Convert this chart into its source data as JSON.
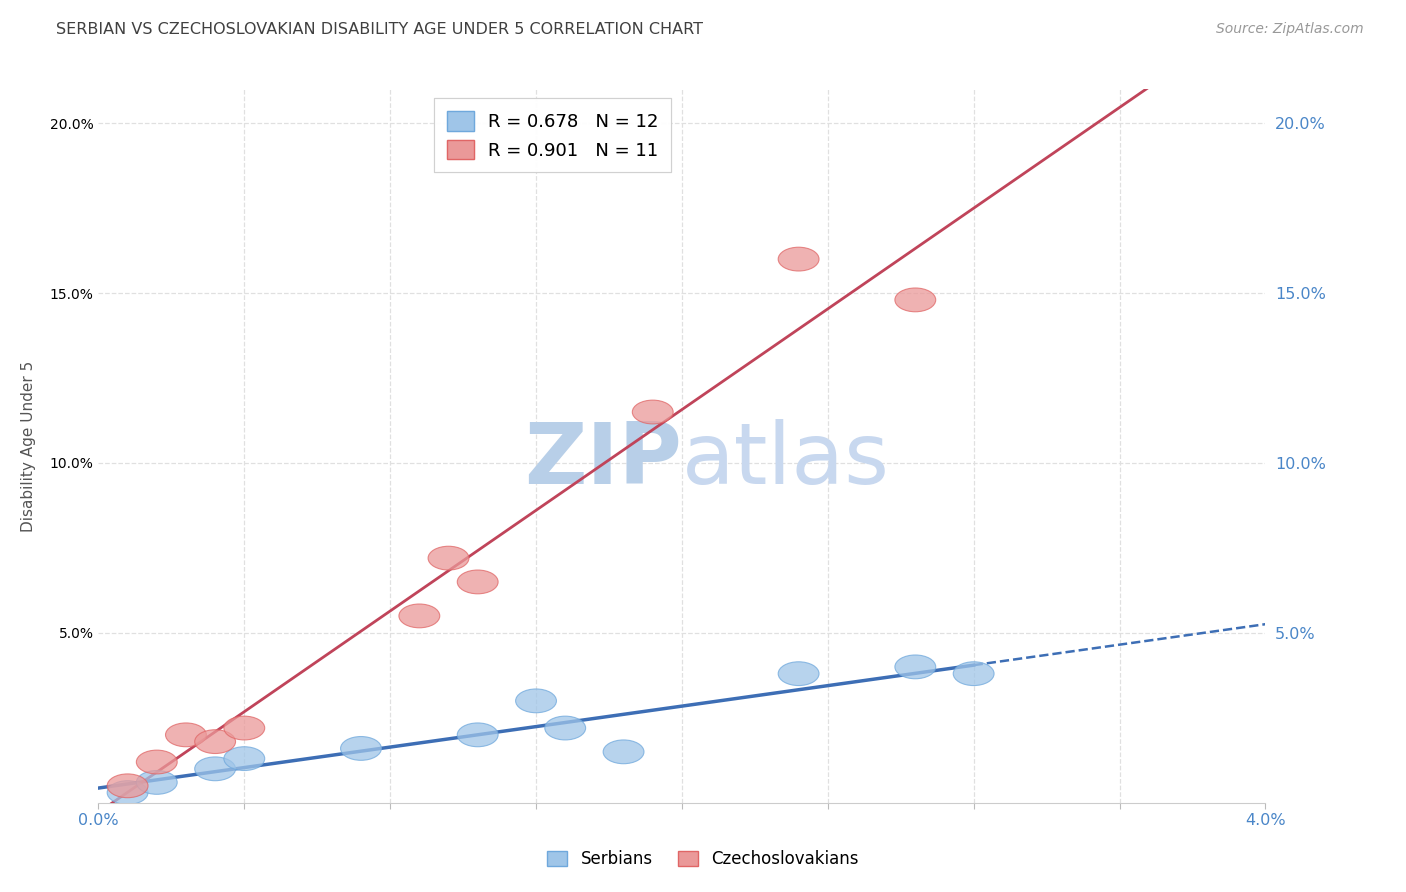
{
  "title": "SERBIAN VS CZECHOSLOVAKIAN DISABILITY AGE UNDER 5 CORRELATION CHART",
  "source": "Source: ZipAtlas.com",
  "ylabel": "Disability Age Under 5",
  "xlim": [
    0.0,
    0.04
  ],
  "ylim": [
    0.0,
    0.21
  ],
  "xtick_positions": [
    0.0,
    0.005,
    0.01,
    0.015,
    0.02,
    0.025,
    0.03,
    0.035,
    0.04
  ],
  "xticklabels": [
    "0.0%",
    "",
    "",
    "",
    "",
    "",
    "",
    "",
    "4.0%"
  ],
  "ytick_positions": [
    0.0,
    0.05,
    0.1,
    0.15,
    0.2
  ],
  "yticklabels_right": [
    "",
    "5.0%",
    "10.0%",
    "15.0%",
    "20.0%"
  ],
  "serbian_color": "#9fc5e8",
  "serbian_edge_color": "#6fa8dc",
  "czech_color": "#ea9999",
  "czech_edge_color": "#e06666",
  "serbian_line_color": "#3d6eb5",
  "czech_line_color": "#c0445a",
  "axis_tick_color": "#4a86c8",
  "grid_color": "#e0e0e0",
  "title_color": "#404040",
  "watermark_color_zip": "#b8cfe8",
  "watermark_color_atlas": "#c8d8ef",
  "legend_border_color": "#cccccc",
  "legend_serbian_label": "R = 0.678   N = 12",
  "legend_czech_label": "R = 0.901   N = 11",
  "serbians_label": "Serbians",
  "czechoslovakians_label": "Czechoslovakians",
  "serbian_x": [
    0.001,
    0.002,
    0.004,
    0.005,
    0.009,
    0.013,
    0.015,
    0.016,
    0.018,
    0.024,
    0.028,
    0.03
  ],
  "serbian_y": [
    0.003,
    0.006,
    0.01,
    0.013,
    0.016,
    0.02,
    0.03,
    0.022,
    0.015,
    0.038,
    0.04,
    0.038
  ],
  "czech_x": [
    0.001,
    0.002,
    0.003,
    0.004,
    0.005,
    0.011,
    0.012,
    0.013,
    0.019,
    0.024,
    0.028
  ],
  "czech_y": [
    0.005,
    0.012,
    0.02,
    0.018,
    0.022,
    0.055,
    0.072,
    0.065,
    0.115,
    0.16,
    0.148
  ]
}
